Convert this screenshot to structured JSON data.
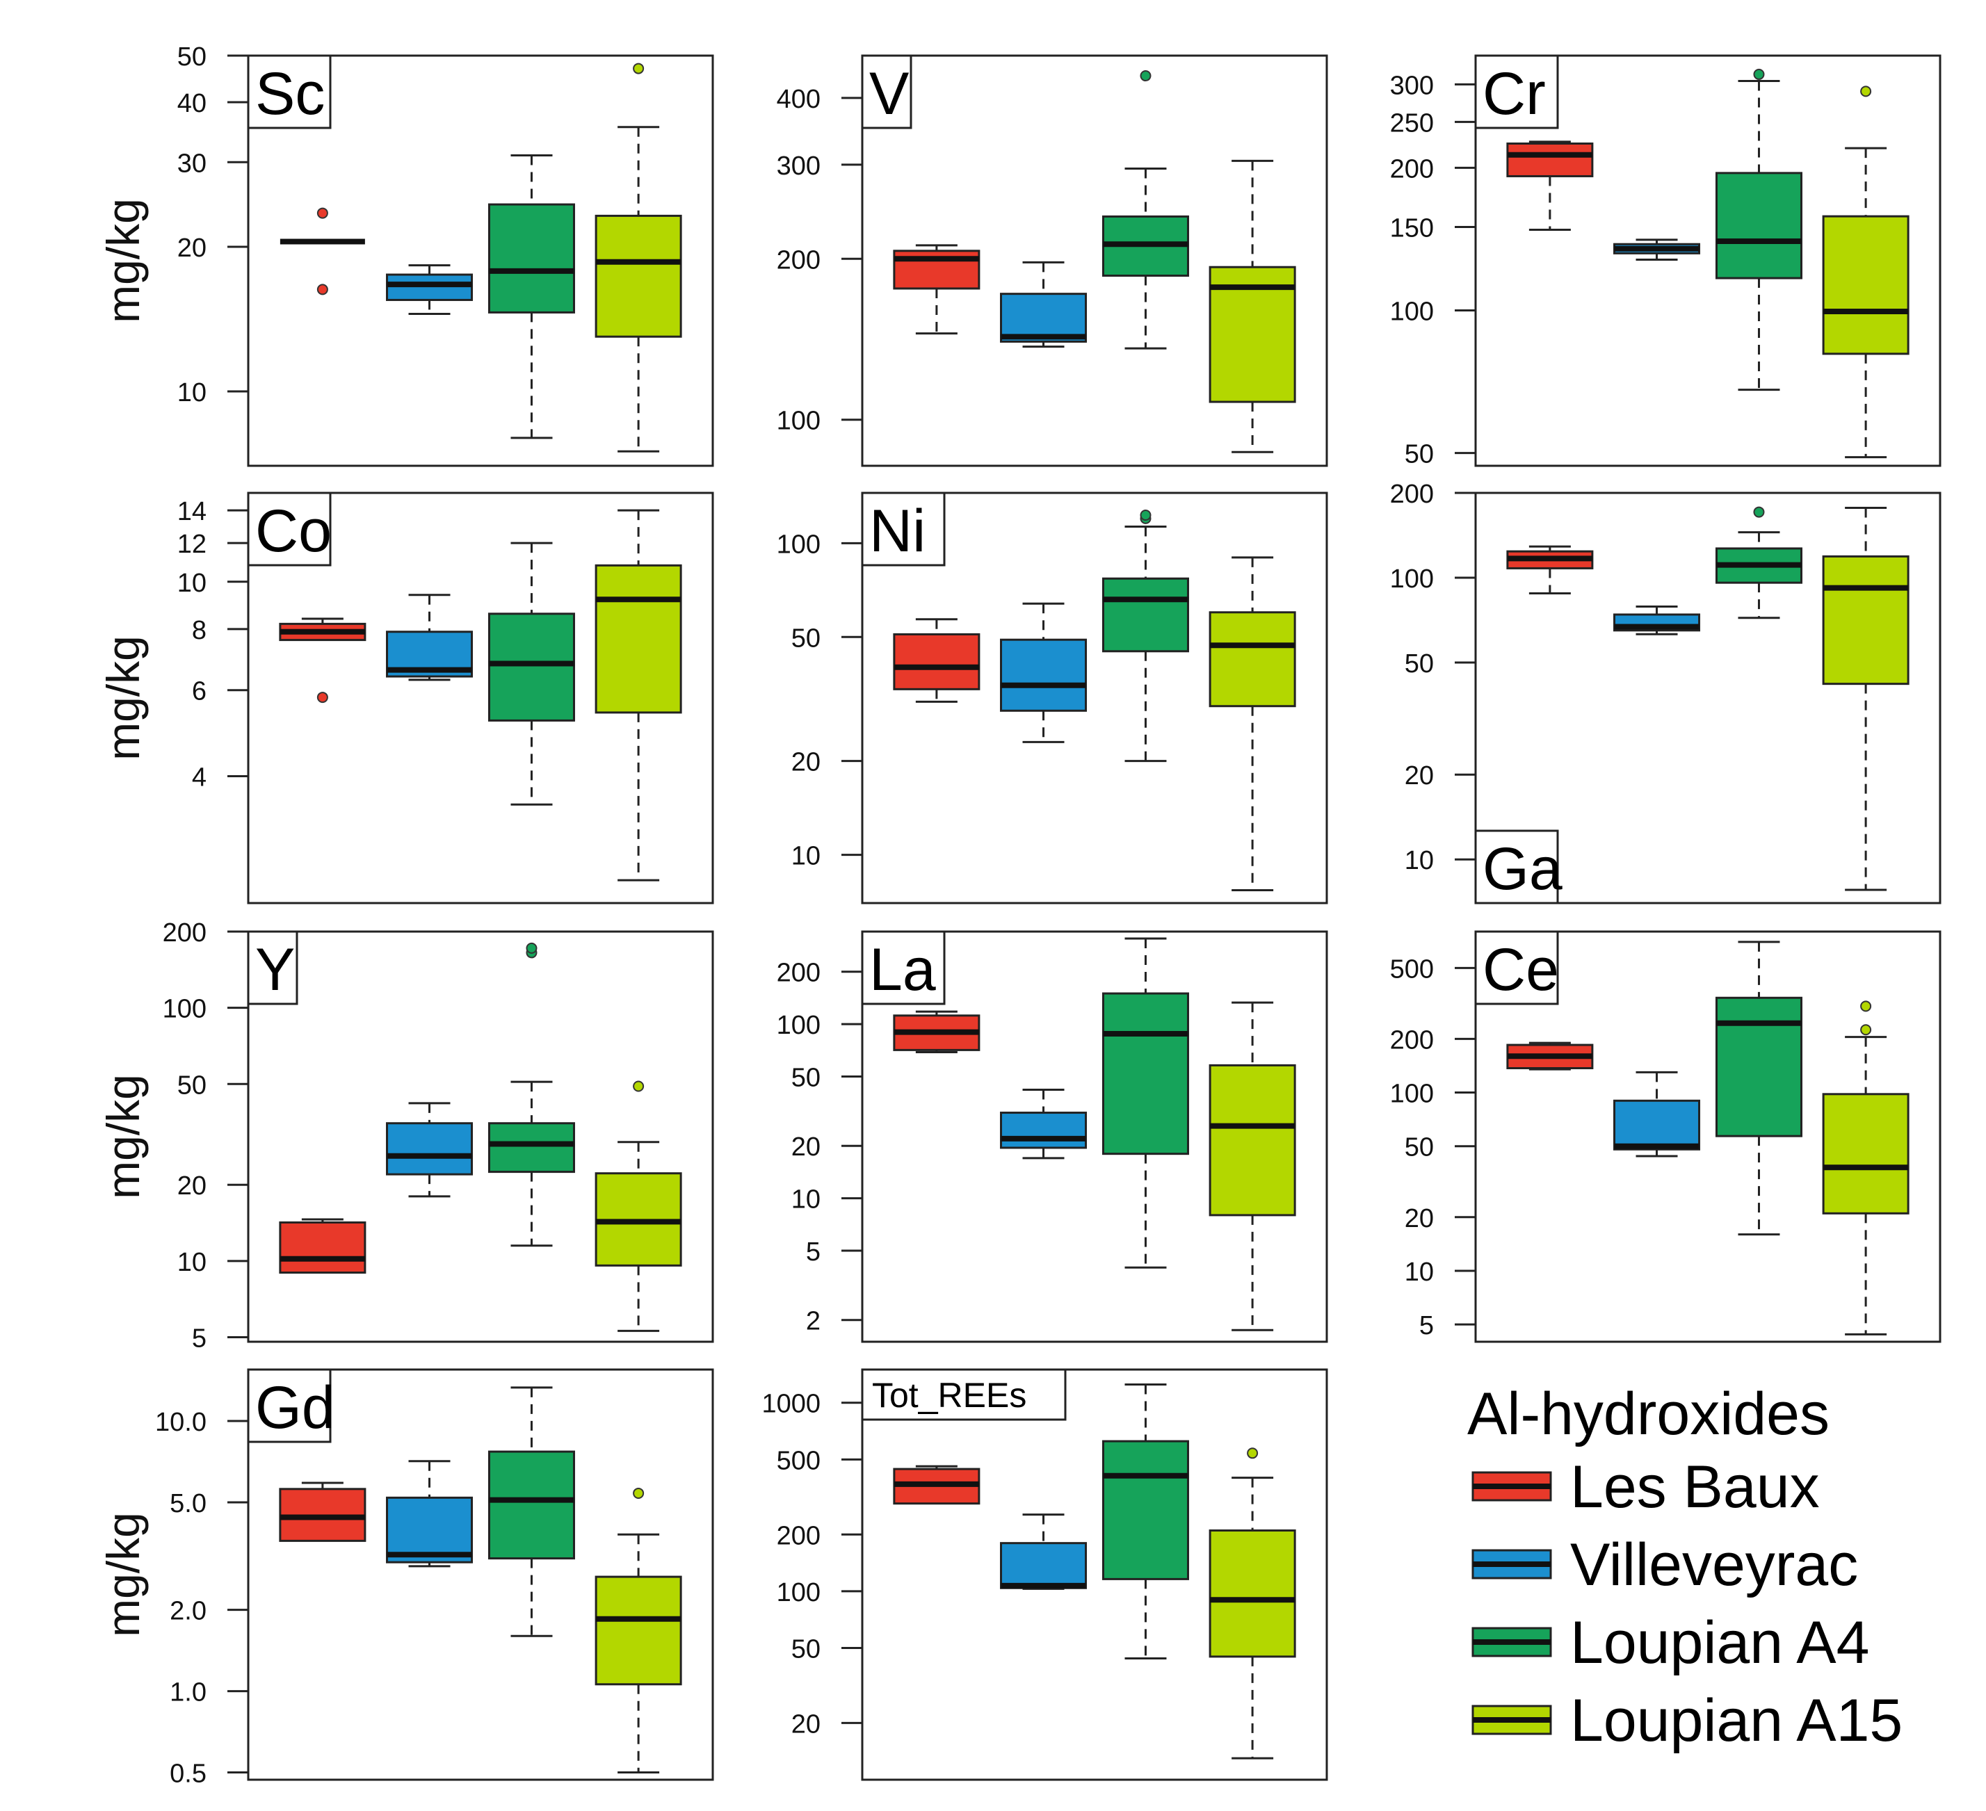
{
  "colors": {
    "Les Baux": "#e8392a",
    "Villeveyrac": "#1b8fcf",
    "Loupian A4": "#16a35a",
    "Loupian A15": "#b3d700"
  },
  "legend": {
    "title": "Al-hydroxides",
    "items": [
      "Les Baux",
      "Villeveyrac",
      "Loupian A4",
      "Loupian A15"
    ]
  },
  "chart_data": [
    {
      "type": "boxplot",
      "title": "Sc",
      "ylabel": "mg/kg",
      "scale": "log",
      "ylim": [
        7,
        50
      ],
      "ticks": [
        10,
        20,
        30,
        40,
        50
      ],
      "tick_labels": [
        "10",
        "20",
        "30",
        "40",
        "50"
      ],
      "series": [
        {
          "name": "Les Baux",
          "low": 20.5,
          "q1": 20.5,
          "median": 20.5,
          "q3": 20.5,
          "high": 20.5,
          "outliers": [
            23.5,
            16.3
          ]
        },
        {
          "name": "Villeveyrac",
          "low": 14.5,
          "q1": 15.5,
          "median": 16.7,
          "q3": 17.5,
          "high": 18.3,
          "outliers": []
        },
        {
          "name": "Loupian A4",
          "low": 8.0,
          "q1": 14.6,
          "median": 17.8,
          "q3": 24.5,
          "high": 31.0,
          "outliers": []
        },
        {
          "name": "Loupian A15",
          "low": 7.5,
          "q1": 13.0,
          "median": 18.6,
          "q3": 23.2,
          "high": 35.5,
          "outliers": [
            47.0
          ]
        }
      ]
    },
    {
      "type": "boxplot",
      "title": "V",
      "ylabel": "",
      "scale": "log",
      "ylim": [
        82,
        480
      ],
      "ticks": [
        100,
        200,
        300,
        400
      ],
      "tick_labels": [
        "100",
        "200",
        "300",
        "400"
      ],
      "series": [
        {
          "name": "Les Baux",
          "low": 145,
          "q1": 176,
          "median": 200,
          "q3": 207,
          "high": 212,
          "outliers": []
        },
        {
          "name": "Villeveyrac",
          "low": 137,
          "q1": 140,
          "median": 143,
          "q3": 172,
          "high": 197,
          "outliers": []
        },
        {
          "name": "Loupian A4",
          "low": 136,
          "q1": 186,
          "median": 213,
          "q3": 240,
          "high": 295,
          "outliers": [
            440
          ]
        },
        {
          "name": "Loupian A15",
          "low": 87,
          "q1": 108,
          "median": 177,
          "q3": 193,
          "high": 305,
          "outliers": []
        }
      ]
    },
    {
      "type": "boxplot",
      "title": "Cr",
      "ylabel": "",
      "scale": "log",
      "ylim": [
        47,
        345
      ],
      "ticks": [
        50,
        100,
        150,
        200,
        250,
        300
      ],
      "tick_labels": [
        "50",
        "100",
        "150",
        "200",
        "250",
        "300"
      ],
      "series": [
        {
          "name": "Les Baux",
          "low": 148,
          "q1": 192,
          "median": 213,
          "q3": 225,
          "high": 227,
          "outliers": []
        },
        {
          "name": "Villeveyrac",
          "low": 128,
          "q1": 132,
          "median": 135,
          "q3": 138,
          "high": 141,
          "outliers": []
        },
        {
          "name": "Loupian A4",
          "low": 68,
          "q1": 117,
          "median": 140,
          "q3": 195,
          "high": 305,
          "outliers": [
            315
          ]
        },
        {
          "name": "Loupian A15",
          "low": 49,
          "q1": 81,
          "median": 99.5,
          "q3": 158,
          "high": 220,
          "outliers": [
            290
          ]
        }
      ]
    },
    {
      "type": "boxplot",
      "title": "Co",
      "ylabel": "mg/kg",
      "scale": "log",
      "ylim": [
        2.2,
        15.2
      ],
      "ticks": [
        4,
        6,
        8,
        10,
        12,
        14
      ],
      "tick_labels": [
        "4",
        "6",
        "8",
        "10",
        "12",
        "14"
      ],
      "series": [
        {
          "name": "Les Baux",
          "low": 7.6,
          "q1": 7.6,
          "median": 7.9,
          "q3": 8.2,
          "high": 8.4,
          "outliers": [
            5.8
          ]
        },
        {
          "name": "Villeveyrac",
          "low": 6.3,
          "q1": 6.4,
          "median": 6.6,
          "q3": 7.9,
          "high": 9.4,
          "outliers": []
        },
        {
          "name": "Loupian A4",
          "low": 3.5,
          "q1": 5.2,
          "median": 6.8,
          "q3": 8.6,
          "high": 12.0,
          "outliers": []
        },
        {
          "name": "Loupian A15",
          "low": 2.45,
          "q1": 5.4,
          "median": 9.2,
          "q3": 10.8,
          "high": 14.0,
          "outliers": []
        }
      ]
    },
    {
      "type": "boxplot",
      "title": "Ni",
      "ylabel": "",
      "scale": "log",
      "ylim": [
        7,
        145
      ],
      "ticks": [
        10,
        20,
        50,
        100
      ],
      "tick_labels": [
        "10",
        "20",
        "50",
        "100"
      ],
      "series": [
        {
          "name": "Les Baux",
          "low": 31,
          "q1": 34,
          "median": 40,
          "q3": 51,
          "high": 57,
          "outliers": []
        },
        {
          "name": "Villeveyrac",
          "low": 23,
          "q1": 29,
          "median": 35,
          "q3": 49,
          "high": 64,
          "outliers": []
        },
        {
          "name": "Loupian A4",
          "low": 20,
          "q1": 45,
          "median": 66,
          "q3": 77,
          "high": 113,
          "outliers": [
            120,
            123
          ]
        },
        {
          "name": "Loupian A15",
          "low": 7.7,
          "q1": 30,
          "median": 47,
          "q3": 60,
          "high": 90,
          "outliers": []
        }
      ]
    },
    {
      "type": "boxplot",
      "title": "Ga",
      "ylabel": "",
      "scale": "log",
      "ylim": [
        7,
        200
      ],
      "ticks": [
        10,
        20,
        50,
        100,
        200
      ],
      "tick_labels": [
        "10",
        "20",
        "50",
        "100",
        "200"
      ],
      "series": [
        {
          "name": "Les Baux",
          "low": 88,
          "q1": 108,
          "median": 117,
          "q3": 124,
          "high": 129,
          "outliers": []
        },
        {
          "name": "Villeveyrac",
          "low": 63,
          "q1": 65,
          "median": 67,
          "q3": 74,
          "high": 79,
          "outliers": []
        },
        {
          "name": "Loupian A4",
          "low": 72,
          "q1": 96,
          "median": 111,
          "q3": 127,
          "high": 145,
          "outliers": [
            171
          ]
        },
        {
          "name": "Loupian A15",
          "low": 7.8,
          "q1": 42,
          "median": 92,
          "q3": 119,
          "high": 177,
          "outliers": []
        }
      ]
    },
    {
      "type": "boxplot",
      "title": "Y",
      "ylabel": "mg/kg",
      "scale": "log",
      "ylim": [
        4.8,
        200
      ],
      "ticks": [
        5,
        10,
        20,
        50,
        100,
        200
      ],
      "tick_labels": [
        "5",
        "10",
        "20",
        "50",
        "100",
        "200"
      ],
      "series": [
        {
          "name": "Les Baux",
          "low": 9.0,
          "q1": 9.0,
          "median": 10.2,
          "q3": 14.2,
          "high": 14.6,
          "outliers": []
        },
        {
          "name": "Villeveyrac",
          "low": 18,
          "q1": 22,
          "median": 26,
          "q3": 35,
          "high": 42,
          "outliers": []
        },
        {
          "name": "Loupian A4",
          "low": 11.5,
          "q1": 22.5,
          "median": 29,
          "q3": 35,
          "high": 51,
          "outliers": [
            165,
            172
          ]
        },
        {
          "name": "Loupian A15",
          "low": 5.3,
          "q1": 9.6,
          "median": 14.3,
          "q3": 22.2,
          "high": 29.5,
          "outliers": [
            49
          ]
        }
      ]
    },
    {
      "type": "boxplot",
      "title": "La",
      "ylabel": "",
      "scale": "log",
      "ylim": [
        1.5,
        340
      ],
      "ticks": [
        2,
        5,
        10,
        20,
        50,
        100,
        200
      ],
      "tick_labels": [
        "2",
        "5",
        "10",
        "20",
        "50",
        "100",
        "200"
      ],
      "series": [
        {
          "name": "Les Baux",
          "low": 69,
          "q1": 71,
          "median": 90,
          "q3": 112,
          "high": 118,
          "outliers": []
        },
        {
          "name": "Villeveyrac",
          "low": 17,
          "q1": 19.5,
          "median": 22,
          "q3": 31,
          "high": 42,
          "outliers": []
        },
        {
          "name": "Loupian A4",
          "low": 4.0,
          "q1": 18,
          "median": 88,
          "q3": 150,
          "high": 310,
          "outliers": []
        },
        {
          "name": "Loupian A15",
          "low": 1.75,
          "q1": 8.0,
          "median": 26,
          "q3": 58,
          "high": 133,
          "outliers": []
        }
      ]
    },
    {
      "type": "boxplot",
      "title": "Ce",
      "ylabel": "",
      "scale": "log",
      "ylim": [
        4,
        800
      ],
      "ticks": [
        5,
        10,
        20,
        50,
        100,
        200,
        500
      ],
      "tick_labels": [
        "5",
        "10",
        "20",
        "50",
        "100",
        "200",
        "500"
      ],
      "series": [
        {
          "name": "Les Baux",
          "low": 135,
          "q1": 137,
          "median": 160,
          "q3": 185,
          "high": 190,
          "outliers": []
        },
        {
          "name": "Villeveyrac",
          "low": 44,
          "q1": 48,
          "median": 50,
          "q3": 90,
          "high": 130,
          "outliers": []
        },
        {
          "name": "Loupian A4",
          "low": 16,
          "q1": 57,
          "median": 245,
          "q3": 340,
          "high": 700,
          "outliers": []
        },
        {
          "name": "Loupian A15",
          "low": 4.4,
          "q1": 21,
          "median": 38,
          "q3": 98,
          "high": 205,
          "outliers": [
            225,
            305
          ]
        }
      ]
    },
    {
      "type": "boxplot",
      "title": "Gd",
      "ylabel": "mg/kg",
      "scale": "log",
      "ylim": [
        0.47,
        15.5
      ],
      "ticks": [
        0.5,
        1.0,
        2.0,
        5.0,
        10.0
      ],
      "tick_labels": [
        "0.5",
        "1.0",
        "2.0",
        "5.0",
        "10.0"
      ],
      "series": [
        {
          "name": "Les Baux",
          "low": 3.6,
          "q1": 3.6,
          "median": 4.4,
          "q3": 5.6,
          "high": 5.9,
          "outliers": []
        },
        {
          "name": "Villeveyrac",
          "low": 2.9,
          "q1": 3.0,
          "median": 3.2,
          "q3": 5.2,
          "high": 7.1,
          "outliers": []
        },
        {
          "name": "Loupian A4",
          "low": 1.6,
          "q1": 3.1,
          "median": 5.1,
          "q3": 7.7,
          "high": 13.3,
          "outliers": []
        },
        {
          "name": "Loupian A15",
          "low": 0.5,
          "q1": 1.06,
          "median": 1.85,
          "q3": 2.65,
          "high": 3.8,
          "outliers": [
            5.4
          ]
        }
      ]
    },
    {
      "type": "boxplot",
      "title": "Tot_REEs",
      "ylabel": "",
      "scale": "log",
      "ylim": [
        10,
        1500
      ],
      "ticks": [
        20,
        50,
        100,
        200,
        500,
        1000
      ],
      "tick_labels": [
        "20",
        "50",
        "100",
        "200",
        "500",
        "1000"
      ],
      "series": [
        {
          "name": "Les Baux",
          "low": 290,
          "q1": 292,
          "median": 370,
          "q3": 445,
          "high": 460,
          "outliers": []
        },
        {
          "name": "Villeveyrac",
          "low": 103,
          "q1": 104,
          "median": 107,
          "q3": 180,
          "high": 255,
          "outliers": []
        },
        {
          "name": "Loupian A4",
          "low": 44,
          "q1": 116,
          "median": 410,
          "q3": 625,
          "high": 1250,
          "outliers": []
        },
        {
          "name": "Loupian A15",
          "low": 13,
          "q1": 45,
          "median": 90,
          "q3": 210,
          "high": 400,
          "outliers": [
            540
          ]
        }
      ]
    }
  ]
}
